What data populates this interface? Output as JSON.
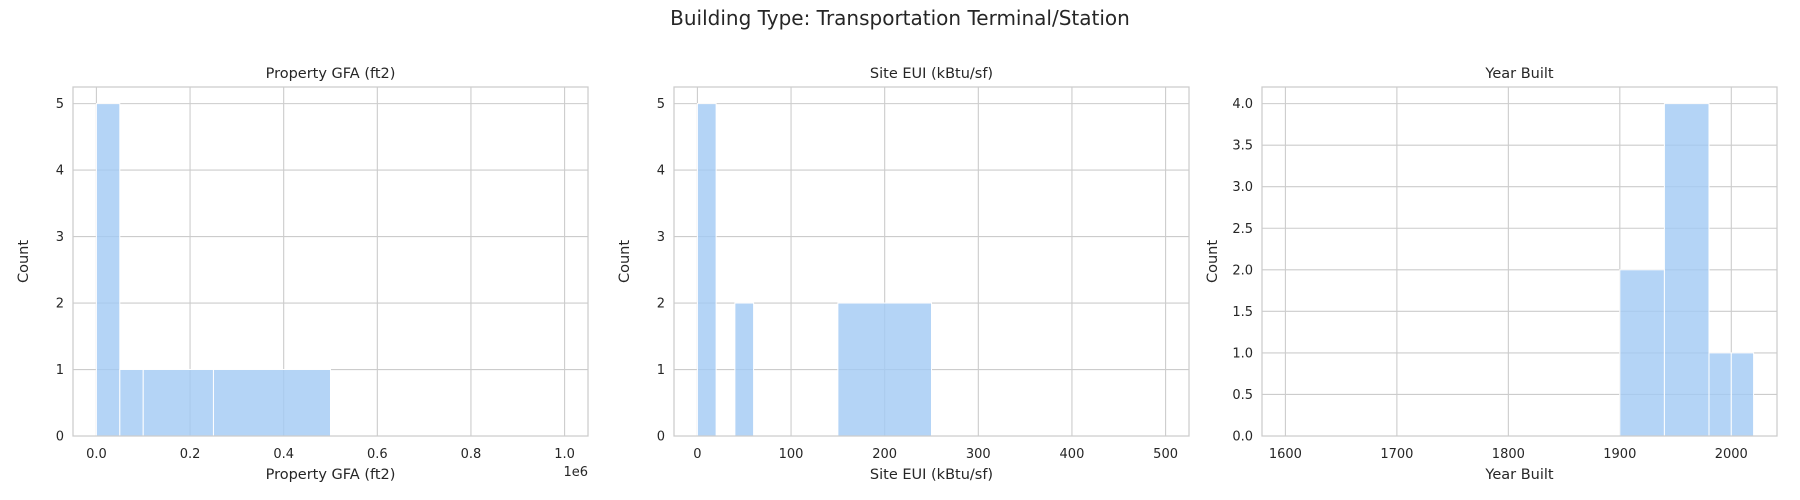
{
  "suptitle": "Building Type: Transportation Terminal/Station",
  "chart_data": [
    {
      "type": "bar",
      "title": "Property GFA (ft2)",
      "xlabel": "Property GFA (ft2)",
      "ylabel": "Count",
      "x_offset_label": "1e6",
      "xlim": [
        -0.05,
        1.05
      ],
      "ylim": [
        0,
        5.25
      ],
      "x_ticks": [
        0.0,
        0.2,
        0.4,
        0.6,
        0.8,
        1.0
      ],
      "x_tick_labels": [
        "0.0",
        "0.2",
        "0.4",
        "0.6",
        "0.8",
        "1.0"
      ],
      "y_ticks": [
        0,
        1,
        2,
        3,
        4,
        5
      ],
      "y_tick_labels": [
        "0",
        "1",
        "2",
        "3",
        "4",
        "5"
      ],
      "bins": [
        {
          "x0": 0.0,
          "x1": 0.05,
          "count": 5
        },
        {
          "x0": 0.05,
          "x1": 0.1,
          "count": 1
        },
        {
          "x0": 0.1,
          "x1": 0.25,
          "count": 1
        },
        {
          "x0": 0.25,
          "x1": 0.5,
          "count": 1
        }
      ],
      "grid": true
    },
    {
      "type": "bar",
      "title": "Site EUI (kBtu/sf)",
      "xlabel": "Site EUI (kBtu/sf)",
      "ylabel": "Count",
      "xlim": [
        -25,
        525
      ],
      "ylim": [
        0,
        5.25
      ],
      "x_ticks": [
        0,
        100,
        200,
        300,
        400,
        500
      ],
      "x_tick_labels": [
        "0",
        "100",
        "200",
        "300",
        "400",
        "500"
      ],
      "y_ticks": [
        0,
        1,
        2,
        3,
        4,
        5
      ],
      "y_tick_labels": [
        "0",
        "1",
        "2",
        "3",
        "4",
        "5"
      ],
      "bins": [
        {
          "x0": 0,
          "x1": 20,
          "count": 5
        },
        {
          "x0": 40,
          "x1": 60,
          "count": 2
        },
        {
          "x0": 150,
          "x1": 250,
          "count": 2
        }
      ],
      "grid": true
    },
    {
      "type": "bar",
      "title": "Year Built",
      "xlabel": "Year Built",
      "ylabel": "Count",
      "xlim": [
        1579,
        2041
      ],
      "ylim": [
        0,
        4.2
      ],
      "x_ticks": [
        1600,
        1700,
        1800,
        1900,
        2000
      ],
      "x_tick_labels": [
        "1600",
        "1700",
        "1800",
        "1900",
        "2000"
      ],
      "y_ticks": [
        0,
        0.5,
        1,
        1.5,
        2,
        2.5,
        3,
        3.5,
        4
      ],
      "y_tick_labels": [
        "0.0",
        "0.5",
        "1.0",
        "1.5",
        "2.0",
        "2.5",
        "3.0",
        "3.5",
        "4.0"
      ],
      "bins": [
        {
          "x0": 1900,
          "x1": 1940,
          "count": 2
        },
        {
          "x0": 1940,
          "x1": 1980,
          "count": 4
        },
        {
          "x0": 1980,
          "x1": 2000,
          "count": 1
        },
        {
          "x0": 2000,
          "x1": 2020,
          "count": 1
        }
      ],
      "grid": true
    }
  ]
}
